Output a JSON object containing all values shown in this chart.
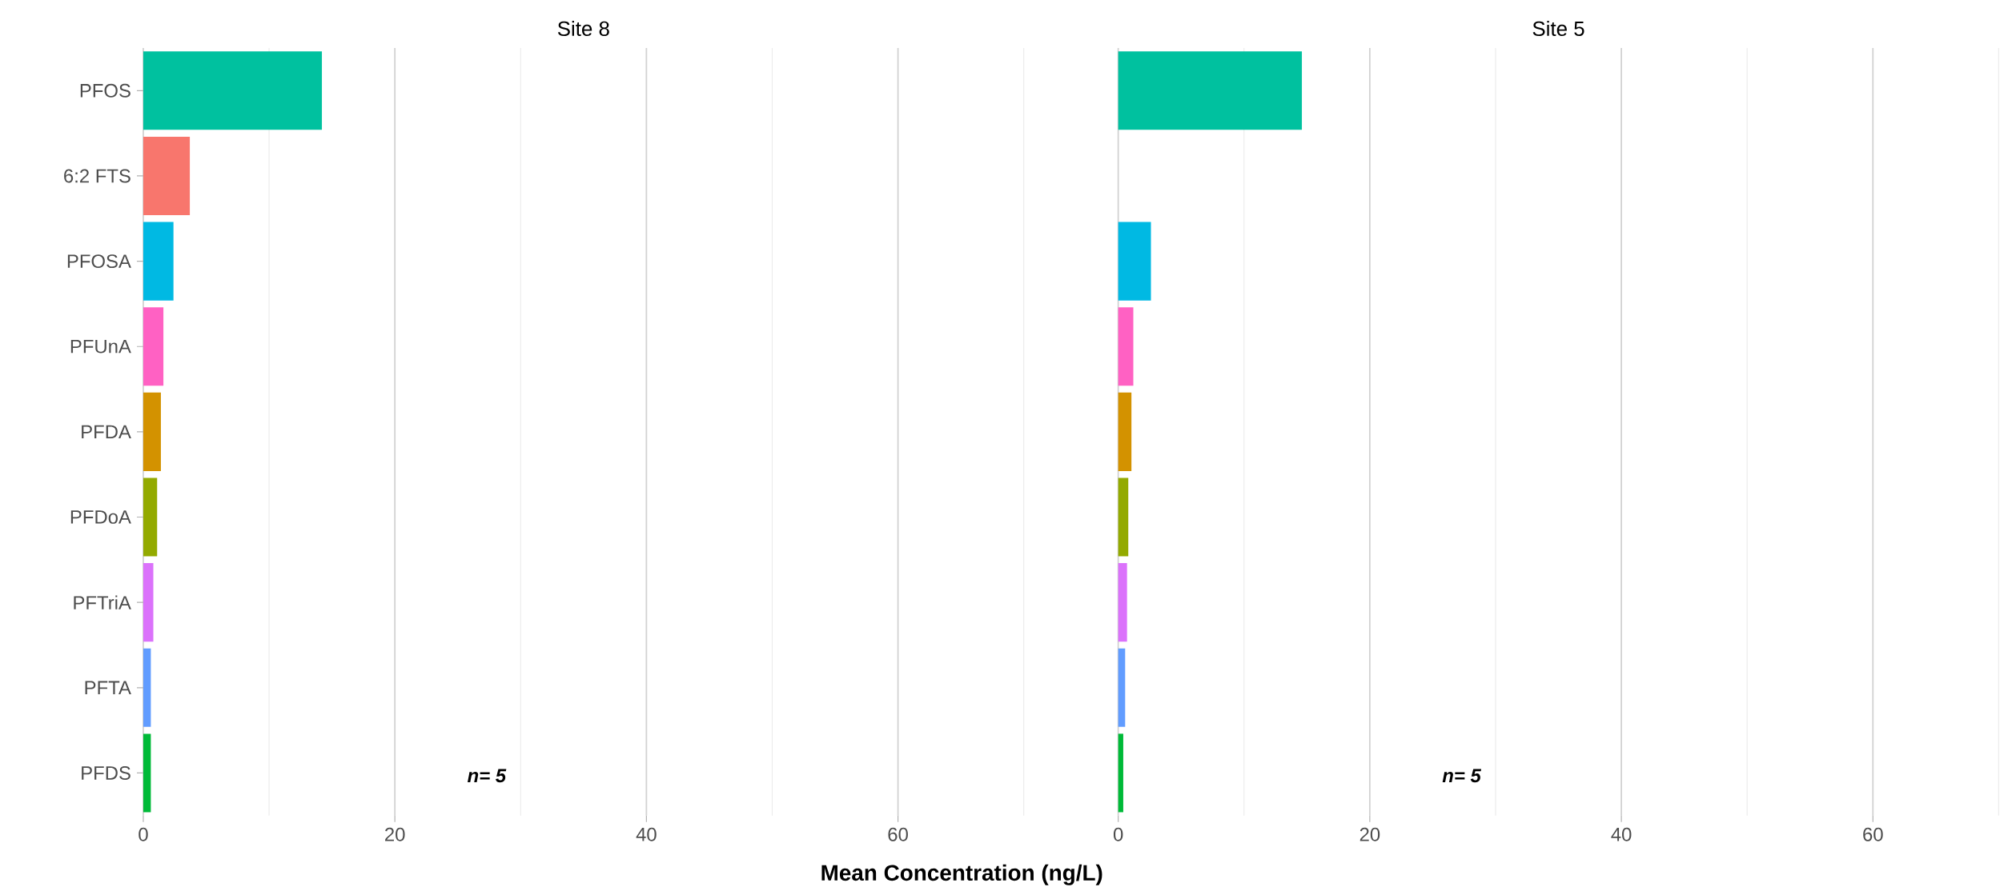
{
  "chart_data": [
    {
      "type": "bar",
      "orientation": "horizontal",
      "title": "Site 8",
      "xlabel": "Mean Concentration (ng/L)",
      "categories": [
        "PFOS",
        "6:2 FTS",
        "PFOSA",
        "PFUnA",
        "PFDA",
        "PFDoA",
        "PFTriA",
        "PFTA",
        "PFDS"
      ],
      "values": [
        14.2,
        3.7,
        2.4,
        1.6,
        1.4,
        1.1,
        0.8,
        0.6,
        0.6
      ],
      "colors": [
        "#00c19f",
        "#f8766d",
        "#00b9e3",
        "#ff61c3",
        "#d39200",
        "#93aa00",
        "#db72fb",
        "#619cff",
        "#00ba38"
      ],
      "xlim": [
        0,
        70
      ],
      "xticks": [
        0,
        {
          "value": 10,
          "label": null
        },
        20,
        {
          "value": 30,
          "label": null
        },
        40,
        {
          "value": 50,
          "label": null
        },
        60,
        {
          "value": 70,
          "label": null
        }
      ],
      "grid": "x",
      "annotations": [
        "n= 5"
      ]
    },
    {
      "type": "bar",
      "orientation": "horizontal",
      "title": "Site 5",
      "categories": [
        null,
        null,
        null,
        null,
        null,
        null,
        null,
        null,
        null
      ],
      "values": [
        14.6,
        null,
        2.6,
        1.2,
        1.05,
        0.8,
        0.7,
        0.55,
        0.4
      ],
      "colors": [
        "#00c19f",
        "#f8766d",
        "#00b9e3",
        "#ff61c3",
        "#d39200",
        "#93aa00",
        "#db72fb",
        "#619cff",
        "#00ba38"
      ],
      "xlim": [
        0,
        70
      ],
      "xticks": [
        0,
        {
          "value": 10,
          "label": null
        },
        20,
        {
          "value": 30,
          "label": null
        },
        40,
        {
          "value": 50,
          "label": null
        },
        60,
        {
          "value": 70,
          "label": null
        }
      ],
      "grid": "x",
      "tick_labels": "x",
      "annotations": [
        "n= 5"
      ]
    }
  ]
}
